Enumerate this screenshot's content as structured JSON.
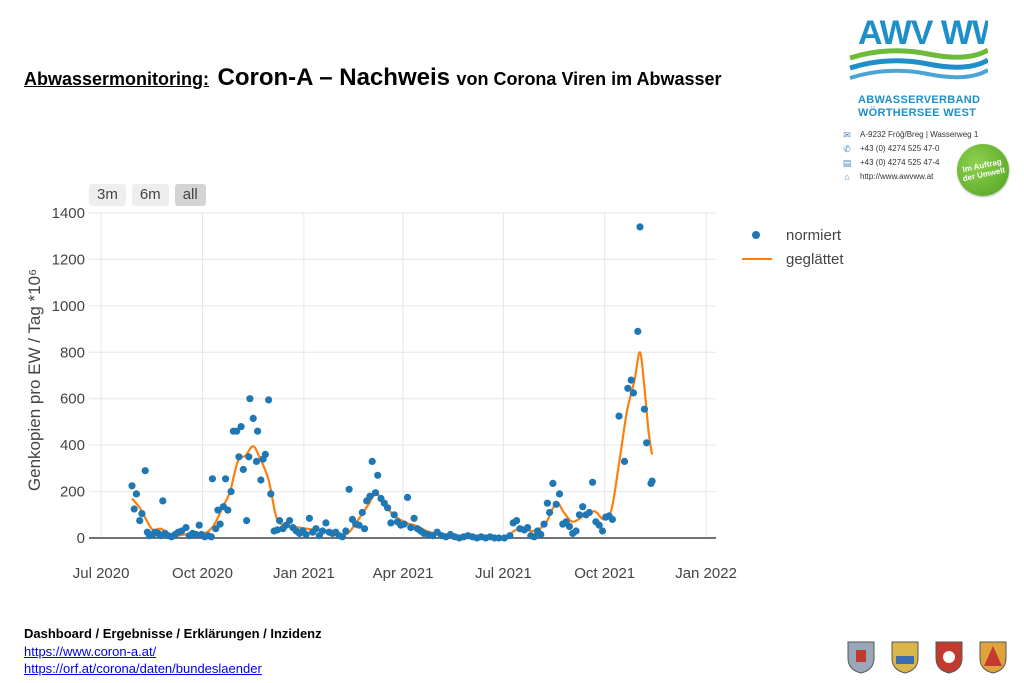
{
  "header": {
    "title_prefix": "Abwassermonitoring:",
    "title_main": "Coron-A – Nachweis",
    "title_suffix": "von Corona Viren im Abwasser"
  },
  "logo": {
    "name_line1": "ABWASSERVERBAND",
    "name_line2": "WÖRTHERSEE  WEST",
    "address": "A-9232 Fröğ/Breg | Wasserweg 1",
    "phone": "+43 (0) 4274 525 47-0",
    "fax": "+43 (0) 4274 525 47-4",
    "web": "http://www.awvww.at",
    "badge": "Im Auftrag der Umwelt",
    "colors": {
      "blue": "#1e8fc9",
      "green": "#6dbb3a"
    }
  },
  "range_selector": {
    "buttons": [
      {
        "label": "3m"
      },
      {
        "label": "6m"
      },
      {
        "label": "all"
      }
    ],
    "active": "all"
  },
  "legend": {
    "items": [
      {
        "label": "normiert"
      },
      {
        "label": "geglättet"
      }
    ]
  },
  "footer": {
    "heading": "Dashboard / Ergebnisse / Erklärungen / Inzidenz",
    "links": [
      {
        "text": "https://www.coron-a.at/"
      },
      {
        "text": "https://orf.at/corona/daten/bundeslaender"
      }
    ]
  },
  "crests": [
    "crest-icon",
    "crest-icon",
    "crest-icon",
    "crest-icon"
  ],
  "chart_data": {
    "type": "scatter",
    "ylabel": "Genkopien pro EW / Tag *10⁶",
    "xlabel": "",
    "title": "",
    "x_ticks": [
      "Jul 2020",
      "Oct 2020",
      "Jan 2021",
      "Apr 2021",
      "Jul 2021",
      "Oct 2021",
      "Jan 2022"
    ],
    "x_tick_dates": [
      "2020-07-01",
      "2020-10-01",
      "2021-01-01",
      "2021-04-01",
      "2021-07-01",
      "2021-10-01",
      "2022-01-01"
    ],
    "y_ticks": [
      0,
      200,
      400,
      600,
      800,
      1000,
      1200,
      1400
    ],
    "ylim": [
      0,
      1400
    ],
    "xlim": [
      "2020-06-20",
      "2022-01-10"
    ],
    "grid": true,
    "legend_position": "top-right",
    "colors": {
      "normiert": "#1f77b4",
      "geglättet": "#ff7f0e"
    },
    "series": [
      {
        "name": "normiert",
        "mode": "markers",
        "points": [
          [
            "2020-07-29",
            225
          ],
          [
            "2020-07-31",
            125
          ],
          [
            "2020-08-02",
            190
          ],
          [
            "2020-08-05",
            75
          ],
          [
            "2020-08-07",
            105
          ],
          [
            "2020-08-10",
            290
          ],
          [
            "2020-08-12",
            25
          ],
          [
            "2020-08-14",
            10
          ],
          [
            "2020-08-17",
            15
          ],
          [
            "2020-08-19",
            25
          ],
          [
            "2020-08-22",
            20
          ],
          [
            "2020-08-24",
            10
          ],
          [
            "2020-08-26",
            160
          ],
          [
            "2020-08-28",
            20
          ],
          [
            "2020-08-31",
            10
          ],
          [
            "2020-09-03",
            5
          ],
          [
            "2020-09-06",
            15
          ],
          [
            "2020-09-09",
            25
          ],
          [
            "2020-09-12",
            30
          ],
          [
            "2020-09-16",
            45
          ],
          [
            "2020-09-19",
            10
          ],
          [
            "2020-09-22",
            20
          ],
          [
            "2020-09-25",
            15
          ],
          [
            "2020-09-28",
            55
          ],
          [
            "2020-09-30",
            15
          ],
          [
            "2020-10-03",
            5
          ],
          [
            "2020-10-06",
            10
          ],
          [
            "2020-10-09",
            5
          ],
          [
            "2020-10-10",
            255
          ],
          [
            "2020-10-13",
            40
          ],
          [
            "2020-10-15",
            120
          ],
          [
            "2020-10-17",
            60
          ],
          [
            "2020-10-20",
            135
          ],
          [
            "2020-10-22",
            255
          ],
          [
            "2020-10-24",
            120
          ],
          [
            "2020-10-27",
            200
          ],
          [
            "2020-10-29",
            460
          ],
          [
            "2020-11-01",
            460
          ],
          [
            "2020-11-03",
            350
          ],
          [
            "2020-11-05",
            480
          ],
          [
            "2020-11-07",
            295
          ],
          [
            "2020-11-10",
            75
          ],
          [
            "2020-11-12",
            350
          ],
          [
            "2020-11-13",
            600
          ],
          [
            "2020-11-16",
            515
          ],
          [
            "2020-11-19",
            330
          ],
          [
            "2020-11-20",
            460
          ],
          [
            "2020-11-23",
            250
          ],
          [
            "2020-11-25",
            340
          ],
          [
            "2020-11-27",
            360
          ],
          [
            "2020-11-30",
            595
          ],
          [
            "2020-12-02",
            190
          ],
          [
            "2020-12-05",
            30
          ],
          [
            "2020-12-08",
            35
          ],
          [
            "2020-12-10",
            75
          ],
          [
            "2020-12-13",
            40
          ],
          [
            "2020-12-16",
            55
          ],
          [
            "2020-12-19",
            75
          ],
          [
            "2020-12-22",
            45
          ],
          [
            "2020-12-25",
            30
          ],
          [
            "2020-12-28",
            20
          ],
          [
            "2020-12-31",
            30
          ],
          [
            "2021-01-03",
            15
          ],
          [
            "2021-01-06",
            85
          ],
          [
            "2021-01-09",
            25
          ],
          [
            "2021-01-12",
            40
          ],
          [
            "2021-01-15",
            10
          ],
          [
            "2021-01-18",
            30
          ],
          [
            "2021-01-21",
            65
          ],
          [
            "2021-01-24",
            25
          ],
          [
            "2021-01-27",
            20
          ],
          [
            "2021-01-30",
            25
          ],
          [
            "2021-02-02",
            10
          ],
          [
            "2021-02-05",
            5
          ],
          [
            "2021-02-08",
            30
          ],
          [
            "2021-02-11",
            210
          ],
          [
            "2021-02-14",
            80
          ],
          [
            "2021-02-17",
            60
          ],
          [
            "2021-02-20",
            55
          ],
          [
            "2021-02-23",
            110
          ],
          [
            "2021-02-25",
            40
          ],
          [
            "2021-02-27",
            160
          ],
          [
            "2021-03-02",
            180
          ],
          [
            "2021-03-04",
            330
          ],
          [
            "2021-03-07",
            195
          ],
          [
            "2021-03-09",
            270
          ],
          [
            "2021-03-12",
            170
          ],
          [
            "2021-03-15",
            150
          ],
          [
            "2021-03-18",
            130
          ],
          [
            "2021-03-21",
            65
          ],
          [
            "2021-03-24",
            100
          ],
          [
            "2021-03-27",
            70
          ],
          [
            "2021-03-30",
            55
          ],
          [
            "2021-04-02",
            60
          ],
          [
            "2021-04-05",
            175
          ],
          [
            "2021-04-08",
            45
          ],
          [
            "2021-04-11",
            85
          ],
          [
            "2021-04-14",
            40
          ],
          [
            "2021-04-17",
            30
          ],
          [
            "2021-04-20",
            20
          ],
          [
            "2021-04-24",
            15
          ],
          [
            "2021-04-28",
            10
          ],
          [
            "2021-05-02",
            25
          ],
          [
            "2021-05-06",
            10
          ],
          [
            "2021-05-10",
            5
          ],
          [
            "2021-05-14",
            15
          ],
          [
            "2021-05-18",
            5
          ],
          [
            "2021-05-22",
            0
          ],
          [
            "2021-05-26",
            5
          ],
          [
            "2021-05-30",
            10
          ],
          [
            "2021-06-03",
            5
          ],
          [
            "2021-06-07",
            0
          ],
          [
            "2021-06-11",
            5
          ],
          [
            "2021-06-15",
            0
          ],
          [
            "2021-06-19",
            5
          ],
          [
            "2021-06-23",
            0
          ],
          [
            "2021-06-27",
            0
          ],
          [
            "2021-07-02",
            0
          ],
          [
            "2021-07-07",
            10
          ],
          [
            "2021-07-10",
            65
          ],
          [
            "2021-07-13",
            75
          ],
          [
            "2021-07-16",
            40
          ],
          [
            "2021-07-20",
            35
          ],
          [
            "2021-07-23",
            45
          ],
          [
            "2021-07-26",
            10
          ],
          [
            "2021-07-29",
            5
          ],
          [
            "2021-08-01",
            30
          ],
          [
            "2021-08-04",
            15
          ],
          [
            "2021-08-07",
            60
          ],
          [
            "2021-08-10",
            150
          ],
          [
            "2021-08-12",
            110
          ],
          [
            "2021-08-15",
            235
          ],
          [
            "2021-08-18",
            145
          ],
          [
            "2021-08-21",
            190
          ],
          [
            "2021-08-24",
            60
          ],
          [
            "2021-08-27",
            70
          ],
          [
            "2021-08-30",
            50
          ],
          [
            "2021-09-02",
            20
          ],
          [
            "2021-09-05",
            30
          ],
          [
            "2021-09-08",
            100
          ],
          [
            "2021-09-11",
            135
          ],
          [
            "2021-09-14",
            100
          ],
          [
            "2021-09-17",
            110
          ],
          [
            "2021-09-20",
            240
          ],
          [
            "2021-09-23",
            70
          ],
          [
            "2021-09-26",
            55
          ],
          [
            "2021-09-29",
            30
          ],
          [
            "2021-10-02",
            90
          ],
          [
            "2021-10-05",
            95
          ],
          [
            "2021-10-08",
            80
          ],
          [
            "2021-10-14",
            525
          ],
          [
            "2021-10-19",
            330
          ],
          [
            "2021-10-22",
            645
          ],
          [
            "2021-10-25",
            680
          ],
          [
            "2021-10-27",
            625
          ],
          [
            "2021-10-31",
            890
          ],
          [
            "2021-11-02",
            1340
          ],
          [
            "2021-11-06",
            555
          ],
          [
            "2021-11-08",
            410
          ],
          [
            "2021-11-12",
            235
          ],
          [
            "2021-11-13",
            245
          ]
        ]
      },
      {
        "name": "geglättet",
        "mode": "line",
        "points": [
          [
            "2020-07-29",
            170
          ],
          [
            "2020-08-05",
            130
          ],
          [
            "2020-08-12",
            70
          ],
          [
            "2020-08-17",
            35
          ],
          [
            "2020-08-24",
            40
          ],
          [
            "2020-08-31",
            20
          ],
          [
            "2020-09-07",
            10
          ],
          [
            "2020-09-15",
            15
          ],
          [
            "2020-09-25",
            20
          ],
          [
            "2020-10-05",
            25
          ],
          [
            "2020-10-12",
            60
          ],
          [
            "2020-10-19",
            130
          ],
          [
            "2020-10-26",
            200
          ],
          [
            "2020-11-02",
            330
          ],
          [
            "2020-11-09",
            355
          ],
          [
            "2020-11-16",
            395
          ],
          [
            "2020-11-22",
            345
          ],
          [
            "2020-11-30",
            250
          ],
          [
            "2020-12-07",
            90
          ],
          [
            "2020-12-14",
            55
          ],
          [
            "2020-12-28",
            45
          ],
          [
            "2021-01-11",
            35
          ],
          [
            "2021-01-25",
            30
          ],
          [
            "2021-02-08",
            15
          ],
          [
            "2021-02-18",
            70
          ],
          [
            "2021-02-28",
            140
          ],
          [
            "2021-03-07",
            190
          ],
          [
            "2021-03-14",
            160
          ],
          [
            "2021-03-22",
            105
          ],
          [
            "2021-04-02",
            70
          ],
          [
            "2021-04-14",
            50
          ],
          [
            "2021-04-25",
            25
          ],
          [
            "2021-05-10",
            15
          ],
          [
            "2021-05-25",
            8
          ],
          [
            "2021-06-15",
            5
          ],
          [
            "2021-07-02",
            5
          ],
          [
            "2021-07-15",
            40
          ],
          [
            "2021-07-28",
            30
          ],
          [
            "2021-08-08",
            60
          ],
          [
            "2021-08-18",
            150
          ],
          [
            "2021-08-25",
            110
          ],
          [
            "2021-09-02",
            70
          ],
          [
            "2021-09-12",
            95
          ],
          [
            "2021-09-22",
            115
          ],
          [
            "2021-09-30",
            80
          ],
          [
            "2021-10-07",
            120
          ],
          [
            "2021-10-14",
            320
          ],
          [
            "2021-10-21",
            540
          ],
          [
            "2021-10-28",
            680
          ],
          [
            "2021-11-02",
            800
          ],
          [
            "2021-11-06",
            650
          ],
          [
            "2021-11-10",
            450
          ],
          [
            "2021-11-13",
            360
          ]
        ]
      }
    ]
  }
}
